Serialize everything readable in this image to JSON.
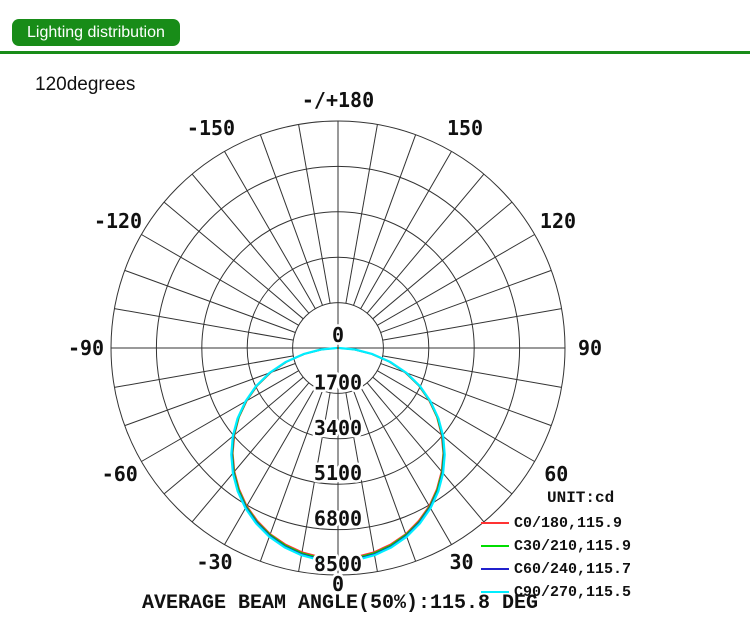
{
  "header": {
    "badge_label": "Lighting distribution",
    "accent_color": "#188c18"
  },
  "subtitle": "120degrees",
  "chart_data": {
    "type": "line",
    "variant": "polar-luminous-intensity",
    "title": "Lighting distribution",
    "subtitle": "120degrees",
    "unit": "cd",
    "grid_color": "#333333",
    "grid_step_deg": 10,
    "angle_label_step_deg": 30,
    "center": {
      "x": 338,
      "y": 348
    },
    "radius_px": 227,
    "max_value": 8500,
    "ring_values": [
      1700,
      3400,
      5100,
      6800,
      8500
    ],
    "center_label": "0",
    "angle_labels": [
      {
        "angle": 180,
        "text": "-/+180",
        "r": 248
      },
      {
        "angle": -150,
        "text": "-150",
        "r": 254
      },
      {
        "angle": 150,
        "text": "150",
        "r": 254
      },
      {
        "angle": -120,
        "text": "-120",
        "r": 254
      },
      {
        "angle": 120,
        "text": "120",
        "r": 254
      },
      {
        "angle": -90,
        "text": "-90",
        "r": 252
      },
      {
        "angle": 90,
        "text": "90",
        "r": 252
      },
      {
        "angle": -60,
        "text": "-60",
        "r": 252
      },
      {
        "angle": 60,
        "text": "60",
        "r": 252
      },
      {
        "angle": -30,
        "text": "-30",
        "r": 247
      },
      {
        "angle": 30,
        "text": "30",
        "r": 247
      },
      {
        "angle": 0,
        "text": "0",
        "r": 236
      }
    ],
    "theta_deg": [
      0,
      5,
      10,
      15,
      20,
      25,
      30,
      35,
      40,
      45,
      50,
      55,
      60,
      65,
      70,
      75,
      80,
      85,
      90
    ],
    "symmetric_mirror": true,
    "series": [
      {
        "name": "C0/180",
        "beam_angle_deg": 115.9,
        "color": "#ff3333",
        "width": 1.6,
        "values": [
          7880,
          7850,
          7760,
          7610,
          7410,
          7140,
          6830,
          6450,
          6030,
          5570,
          5060,
          4520,
          3940,
          3330,
          2670,
          1980,
          1250,
          570,
          10
        ]
      },
      {
        "name": "C30/210",
        "beam_angle_deg": 115.9,
        "color": "#00dd00",
        "width": 1.6,
        "values": [
          7920,
          7890,
          7800,
          7650,
          7440,
          7180,
          6860,
          6480,
          6060,
          5590,
          5090,
          4540,
          3960,
          3350,
          2690,
          2000,
          1270,
          590,
          20
        ]
      },
      {
        "name": "C60/240",
        "beam_angle_deg": 115.7,
        "color": "#2020cc",
        "width": 1.6,
        "values": [
          7960,
          7930,
          7840,
          7690,
          7480,
          7210,
          6890,
          6520,
          6090,
          5620,
          5110,
          4570,
          3980,
          3370,
          2710,
          2020,
          1290,
          610,
          30
        ]
      },
      {
        "name": "C90/270",
        "beam_angle_deg": 115.5,
        "color": "#00eeff",
        "width": 2.2,
        "values": [
          8000,
          7970,
          7880,
          7730,
          7520,
          7250,
          6930,
          6550,
          6120,
          5650,
          5140,
          4590,
          4000,
          3390,
          2730,
          2040,
          1310,
          640,
          40
        ]
      }
    ]
  },
  "legend": {
    "unit_label": "UNIT:cd",
    "entries": [
      {
        "label": "C0/180,115.9",
        "color": "#ff3333"
      },
      {
        "label": "C30/210,115.9",
        "color": "#00dd00"
      },
      {
        "label": "C60/240,115.7",
        "color": "#2020cc"
      },
      {
        "label": "C90/270,115.5",
        "color": "#00eeff"
      }
    ]
  },
  "footer": {
    "text": "AVERAGE BEAM ANGLE(50%):115.8 DEG"
  }
}
